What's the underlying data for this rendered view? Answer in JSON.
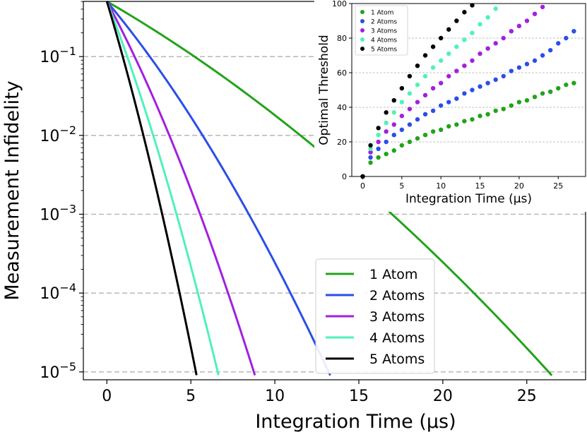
{
  "chart_data": [
    {
      "type": "line",
      "xlabel": "Integration Time (μs)",
      "ylabel": "Measurement Infidelity",
      "xlim": [
        -1.4,
        28.5
      ],
      "ylim_log10": [
        -5.1,
        -0.3
      ],
      "yscale": "log",
      "x_ticks": [
        0,
        5,
        10,
        15,
        20,
        25
      ],
      "y_ticks": [
        {
          "base": "10",
          "exp": "−1",
          "log10": -1
        },
        {
          "base": "10",
          "exp": "−2",
          "log10": -2
        },
        {
          "base": "10",
          "exp": "−3",
          "log10": -3
        },
        {
          "base": "10",
          "exp": "−4",
          "log10": -4
        },
        {
          "base": "10",
          "exp": "−5",
          "log10": -5
        }
      ],
      "grid": "horizontal dashed",
      "legend_position": "lower-right",
      "series": [
        {
          "name": "1 Atom",
          "color": "#22a31a",
          "start_log10": -0.3,
          "x_at_1e-5": 26.3,
          "curvature": 0.45
        },
        {
          "name": "2 Atoms",
          "color": "#2b4ee8",
          "start_log10": -0.3,
          "x_at_1e-5": 13.2,
          "curvature": 0.4
        },
        {
          "name": "3 Atoms",
          "color": "#a21fe0",
          "start_log10": -0.3,
          "x_at_1e-5": 8.75,
          "curvature": 0.35
        },
        {
          "name": "4 Atoms",
          "color": "#4ff2b8",
          "start_log10": -0.3,
          "x_at_1e-5": 6.6,
          "curvature": 0.3
        },
        {
          "name": "5 Atoms",
          "color": "#000000",
          "start_log10": -0.3,
          "x_at_1e-5": 5.3,
          "curvature": 0.25
        }
      ]
    },
    {
      "type": "scatter",
      "xlabel": "Integration Time (μs)",
      "ylabel": "Optimal Threshold",
      "xlim": [
        -1.4,
        28.5
      ],
      "ylim": [
        0,
        100
      ],
      "x_ticks": [
        0,
        5,
        10,
        15,
        20,
        25
      ],
      "y_ticks": [
        0,
        20,
        40,
        60,
        80,
        100
      ],
      "grid": "horizontal dashed",
      "legend_position": "top-left",
      "series": [
        {
          "name": "1 Atom",
          "color": "#22a31a",
          "x": [
            0,
            1,
            2,
            3,
            4,
            5,
            6,
            7,
            8,
            9,
            10,
            11,
            12,
            13,
            14,
            15,
            16,
            17,
            18,
            19,
            20,
            21,
            22,
            23,
            24,
            25,
            26,
            27
          ],
          "y": [
            0,
            8,
            11,
            13,
            15,
            18,
            20,
            22,
            24,
            26,
            27,
            29,
            30,
            32,
            33,
            35,
            36,
            38,
            39,
            41,
            43,
            44,
            46,
            48,
            49,
            51,
            53,
            54
          ]
        },
        {
          "name": "2 Atoms",
          "color": "#2b4ee8",
          "x": [
            0,
            1,
            2,
            3,
            4,
            5,
            6,
            7,
            8,
            9,
            10,
            11,
            12,
            13,
            14,
            15,
            16,
            17,
            18,
            19,
            20,
            21,
            22,
            23,
            24,
            25,
            26,
            27
          ],
          "y": [
            0,
            11,
            16,
            20,
            24,
            27,
            30,
            33,
            36,
            38,
            41,
            43,
            45,
            48,
            50,
            52,
            54,
            56,
            58,
            61,
            63,
            65,
            67,
            70,
            73,
            77,
            80,
            84
          ]
        },
        {
          "name": "3 Atoms",
          "color": "#a21fe0",
          "x": [
            0,
            1,
            2,
            3,
            4,
            5,
            6,
            7,
            8,
            9,
            10,
            11,
            12,
            13,
            14,
            15,
            16,
            17,
            18,
            19,
            20,
            21,
            22,
            23
          ],
          "y": [
            0,
            14,
            20,
            26,
            30,
            35,
            39,
            43,
            47,
            51,
            54,
            58,
            61,
            64,
            67,
            71,
            74,
            77,
            80,
            84,
            87,
            90,
            94,
            98
          ]
        },
        {
          "name": "4 Atoms",
          "color": "#4ff2b8",
          "x": [
            0,
            1,
            2,
            3,
            4,
            5,
            6,
            7,
            8,
            9,
            10,
            11,
            12,
            13,
            14,
            15,
            16,
            17
          ],
          "y": [
            0,
            16,
            24,
            31,
            37,
            43,
            48,
            53,
            58,
            63,
            67,
            71,
            75,
            79,
            83,
            88,
            92,
            97
          ]
        },
        {
          "name": "5 Atoms",
          "color": "#000000",
          "x": [
            0,
            1,
            2,
            3,
            4,
            5,
            6,
            7,
            8,
            9,
            10,
            11,
            12,
            13,
            14
          ],
          "y": [
            0,
            18,
            28,
            37,
            44,
            51,
            58,
            64,
            70,
            75,
            80,
            85,
            90,
            95,
            99
          ]
        }
      ]
    }
  ]
}
